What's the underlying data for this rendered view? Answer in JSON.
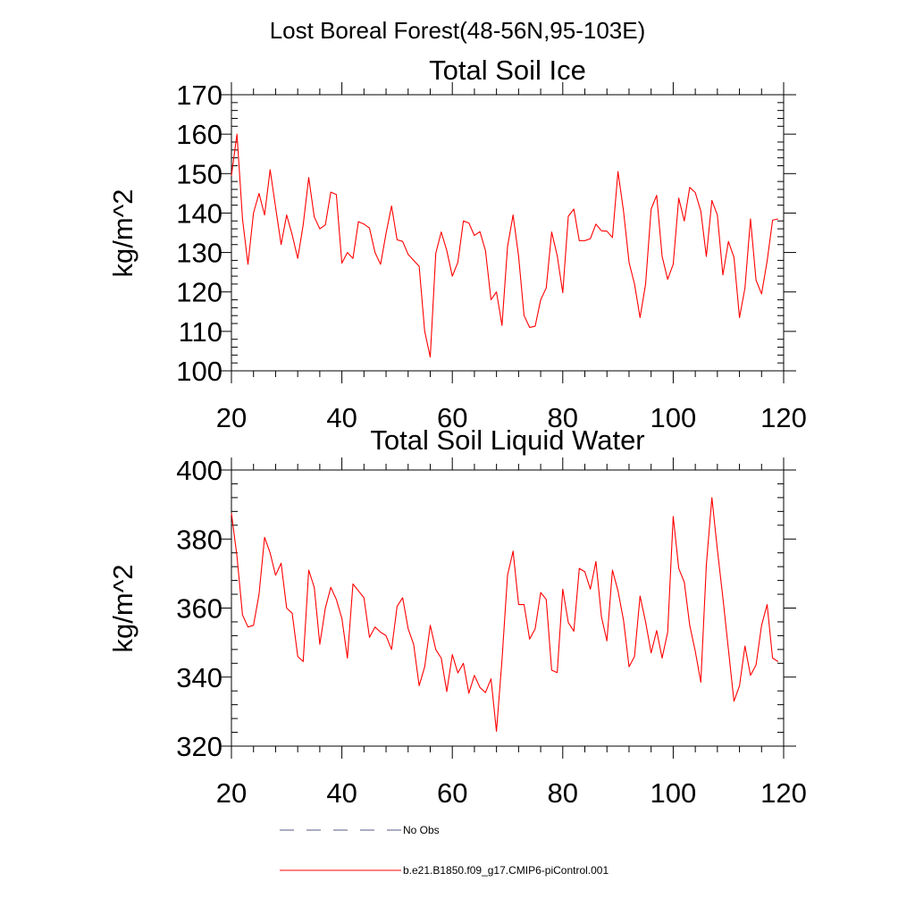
{
  "figure_title": "Lost Boreal Forest(48-56N,95-103E)",
  "legend": {
    "items": [
      {
        "label": "No Obs",
        "style": "dashed",
        "color": "#5a5a8a"
      },
      {
        "label": "b.e21.B1850.f09_g17.CMIP6-piControl.001",
        "style": "solid",
        "color": "#ff0000"
      }
    ]
  },
  "colors": {
    "series": "#ff0000",
    "axis": "#000000",
    "background": "#ffffff"
  },
  "chart_data": [
    {
      "type": "line",
      "title": "Total Soil Ice",
      "xlabel": "",
      "ylabel": "kg/m^2",
      "xlim": [
        20,
        120
      ],
      "ylim": [
        100,
        170
      ],
      "xticks": [
        20,
        40,
        60,
        80,
        100,
        120
      ],
      "yticks": [
        100,
        110,
        120,
        130,
        140,
        150,
        160,
        170
      ],
      "xtick_labels": [
        "20",
        "40",
        "60",
        "80",
        "100",
        "120"
      ],
      "ytick_labels": [
        "100",
        "110",
        "120",
        "130",
        "140",
        "150",
        "160",
        "170"
      ],
      "x_minor_step": 4,
      "y_minor_step": 2,
      "grid": false,
      "series": [
        {
          "name": "b.e21.B1850.f09_g17.CMIP6-piControl.001",
          "color": "#ff0000",
          "x_start": 20,
          "x_step": 1,
          "values": [
            149.5,
            160,
            138.5,
            127,
            140,
            145,
            139.5,
            151,
            141.5,
            132,
            139.5,
            134.5,
            128.5,
            137,
            149,
            139,
            136,
            137,
            145.3,
            144.7,
            127.3,
            130,
            128.5,
            137.8,
            137.2,
            136.2,
            130,
            127,
            134.8,
            141.8,
            133.2,
            132.8,
            129.5,
            128,
            126.5,
            110,
            103.5,
            129.8,
            135.2,
            130.5,
            124,
            127.5,
            138,
            137.5,
            134.3,
            135.3,
            130.5,
            118,
            120,
            111.5,
            131.5,
            139.5,
            129,
            114,
            111,
            111.3,
            118,
            121,
            135.2,
            129.2,
            119.8,
            139.2,
            141,
            133,
            133,
            133.5,
            137.2,
            135.5,
            135.4,
            133.8,
            150.5,
            140.5,
            127.5,
            122,
            113.5,
            122,
            141,
            144.5,
            129,
            123.2,
            127,
            143.8,
            138,
            146.5,
            145.2,
            140.5,
            129,
            143.2,
            139.5,
            124.3,
            132.8,
            128.8,
            113.5,
            121,
            138.5,
            123,
            119.5,
            127.8,
            138.2,
            138.5
          ]
        }
      ]
    },
    {
      "type": "line",
      "title": "Total Soil Liquid Water",
      "xlabel": "",
      "ylabel": "kg/m^2",
      "xlim": [
        20,
        120
      ],
      "ylim": [
        320,
        400
      ],
      "xticks": [
        20,
        40,
        60,
        80,
        100,
        120
      ],
      "yticks": [
        320,
        340,
        360,
        380,
        400
      ],
      "xtick_labels": [
        "20",
        "40",
        "60",
        "80",
        "100",
        "120"
      ],
      "ytick_labels": [
        "320",
        "340",
        "360",
        "380",
        "400"
      ],
      "x_minor_step": 4,
      "y_minor_step": 4,
      "grid": false,
      "series": [
        {
          "name": "b.e21.B1850.f09_g17.CMIP6-piControl.001",
          "color": "#ff0000",
          "x_start": 20,
          "x_step": 1,
          "values": [
            387.5,
            375,
            358,
            354.5,
            355,
            364,
            380.5,
            376,
            369.5,
            373,
            360,
            358.5,
            346,
            344.5,
            371,
            366,
            349.5,
            360,
            366,
            362.5,
            357,
            345.5,
            367,
            365,
            363,
            351.5,
            354.5,
            353,
            352,
            348,
            360.5,
            363,
            354,
            349.5,
            337.5,
            343,
            355,
            348,
            345.5,
            335.8,
            346.5,
            341.2,
            344,
            335.3,
            340.5,
            337,
            335.5,
            339.5,
            324.3,
            345,
            369.5,
            376.5,
            361,
            361,
            351,
            354,
            364.5,
            362.5,
            342,
            341.3,
            365.5,
            355.8,
            353.3,
            371.5,
            370.5,
            365.5,
            373.5,
            357.5,
            350.5,
            371,
            365,
            356.5,
            343,
            346,
            363.5,
            356,
            347,
            353.5,
            345.5,
            353,
            386.5,
            371.5,
            367.5,
            355,
            347.5,
            338.5,
            372.5,
            392,
            377,
            363,
            348,
            333,
            337.5,
            349,
            340.5,
            343.5,
            355,
            361,
            345.5,
            344.5
          ]
        }
      ]
    }
  ]
}
